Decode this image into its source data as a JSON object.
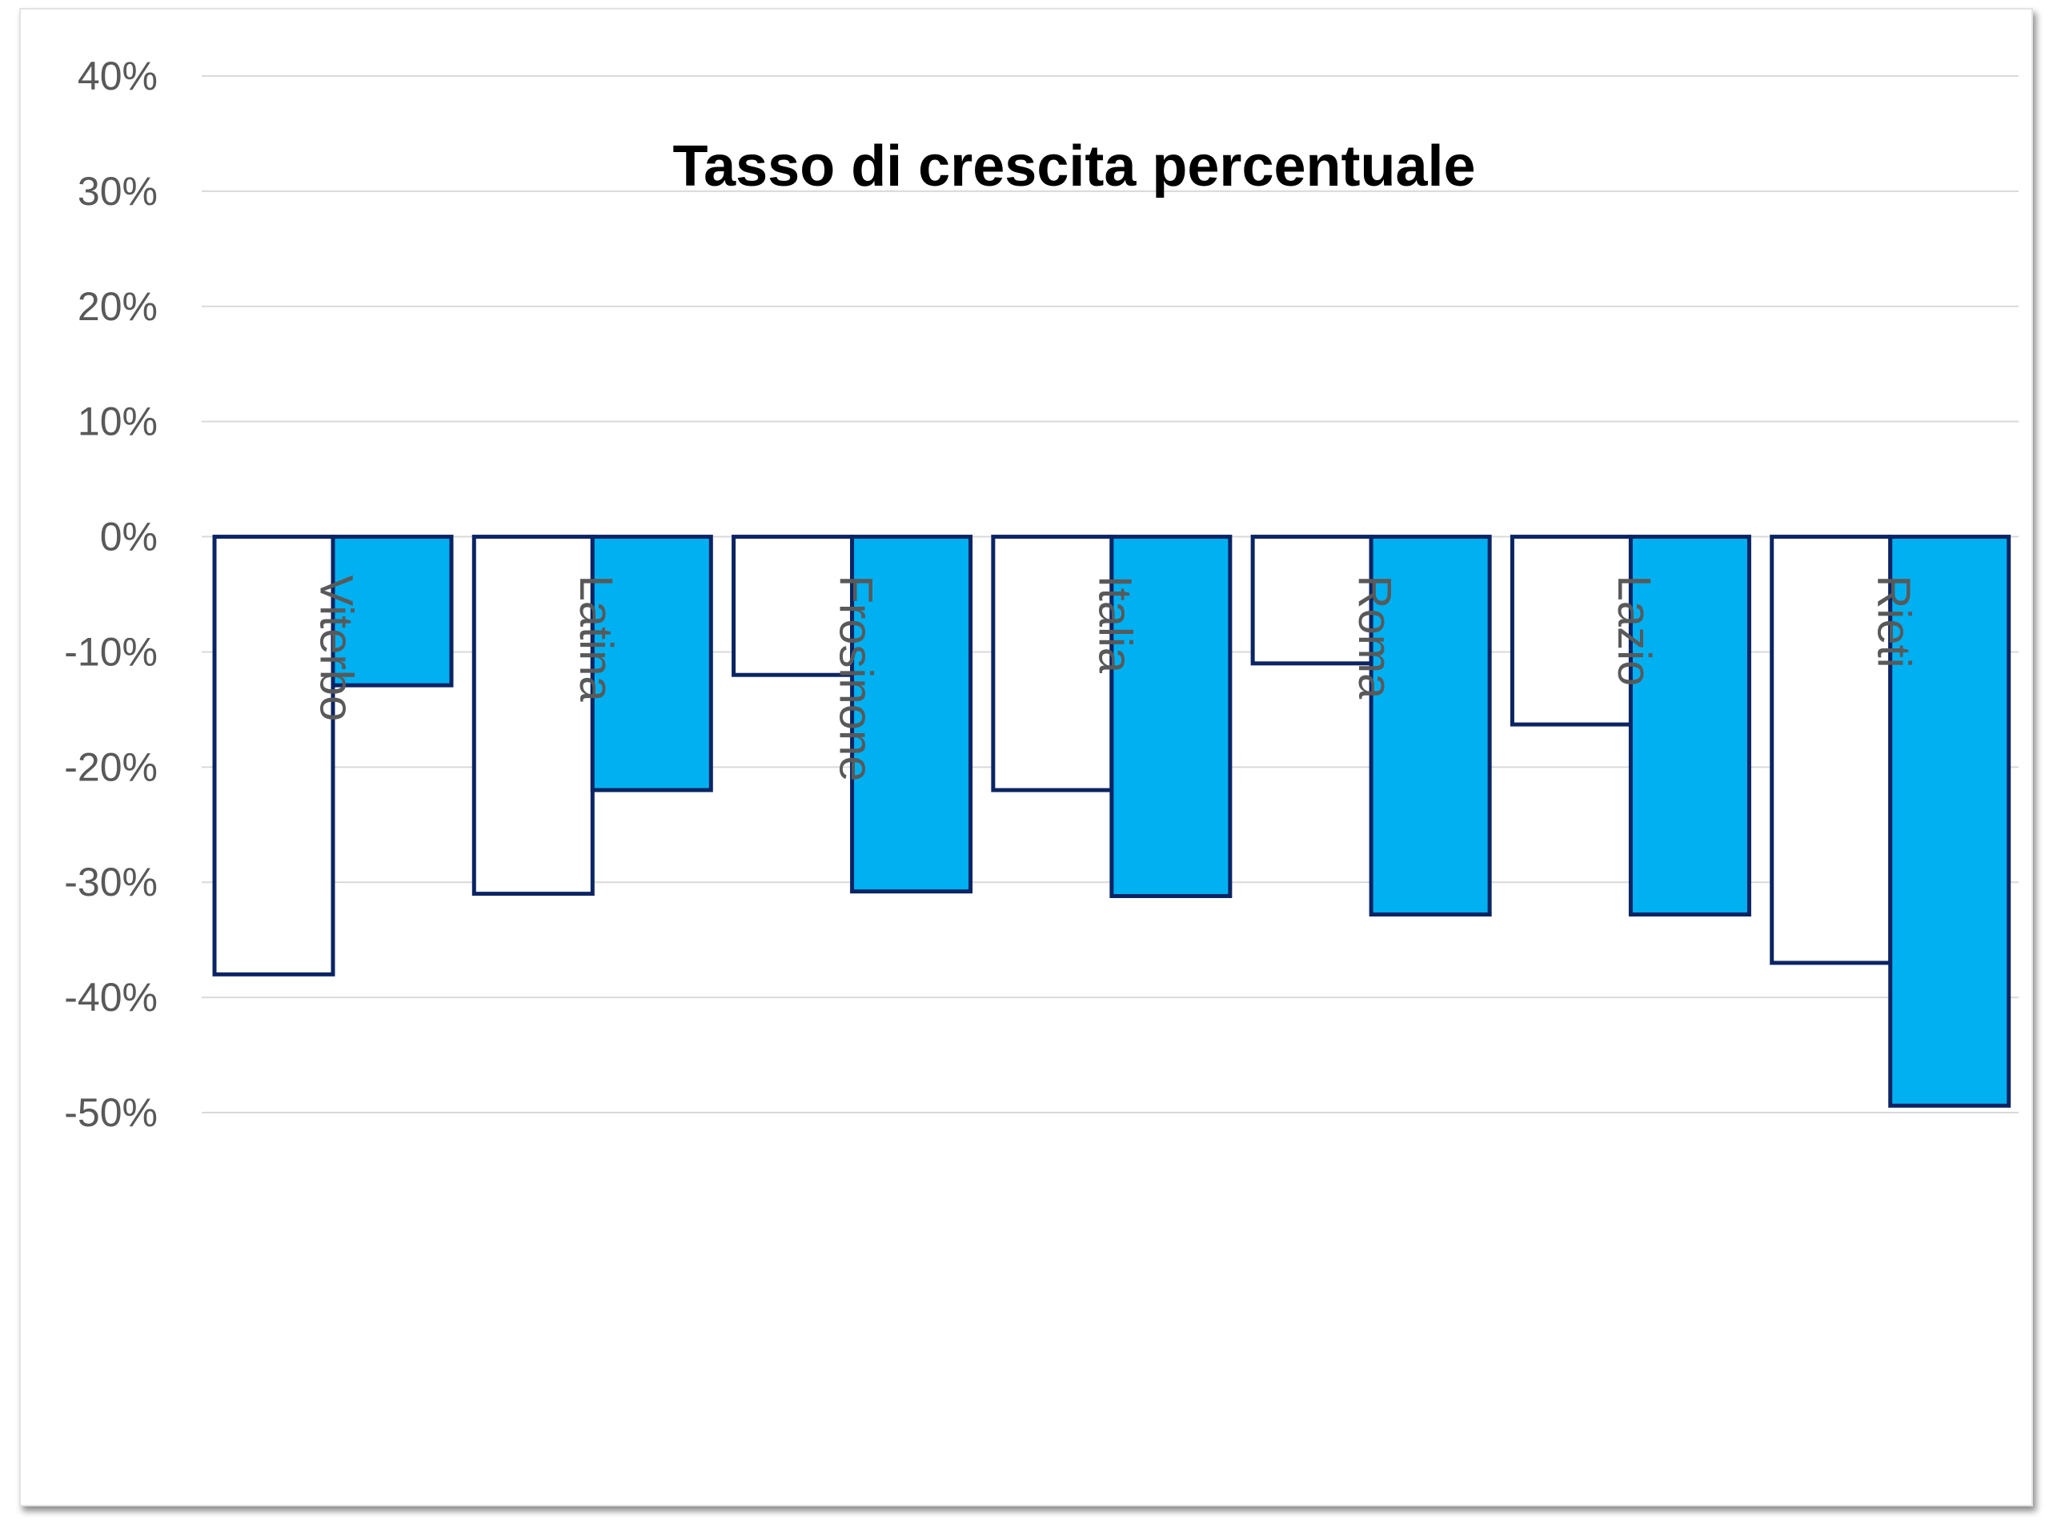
{
  "chart_data": {
    "type": "bar",
    "title": "Tasso di crescita percentuale",
    "xlabel": "",
    "ylabel": "",
    "categories": [
      "Viterbo",
      "Latina",
      "Frosinone",
      "Italia",
      "Roma",
      "Lazio",
      "Rieti"
    ],
    "series": [
      {
        "values": [
          -38,
          -31,
          -12,
          -22,
          -11,
          -16.3,
          -37
        ],
        "color": "#ffffff",
        "stroke": "#0b2463"
      },
      {
        "values": [
          -12.9,
          -22,
          -30.8,
          -31.2,
          -32.8,
          -32.8,
          -49.4
        ],
        "color": "#00b0f0",
        "stroke": "#0b2463"
      }
    ],
    "ylim": [
      -50,
      40
    ],
    "yticks": [
      40,
      30,
      20,
      10,
      0,
      -10,
      -20,
      -30,
      -40,
      -50
    ],
    "ytick_labels": [
      "40%",
      "30%",
      "20%",
      "10%",
      "0%",
      "-10%",
      "-20%",
      "-30%",
      "-40%",
      "-50%"
    ],
    "grid": true,
    "legend": "none",
    "category_label_orientation": "vertical",
    "colors": {
      "gridline": "#d9d9d9",
      "axis_text": "#595959",
      "bar_outline": "#0b2463"
    }
  }
}
